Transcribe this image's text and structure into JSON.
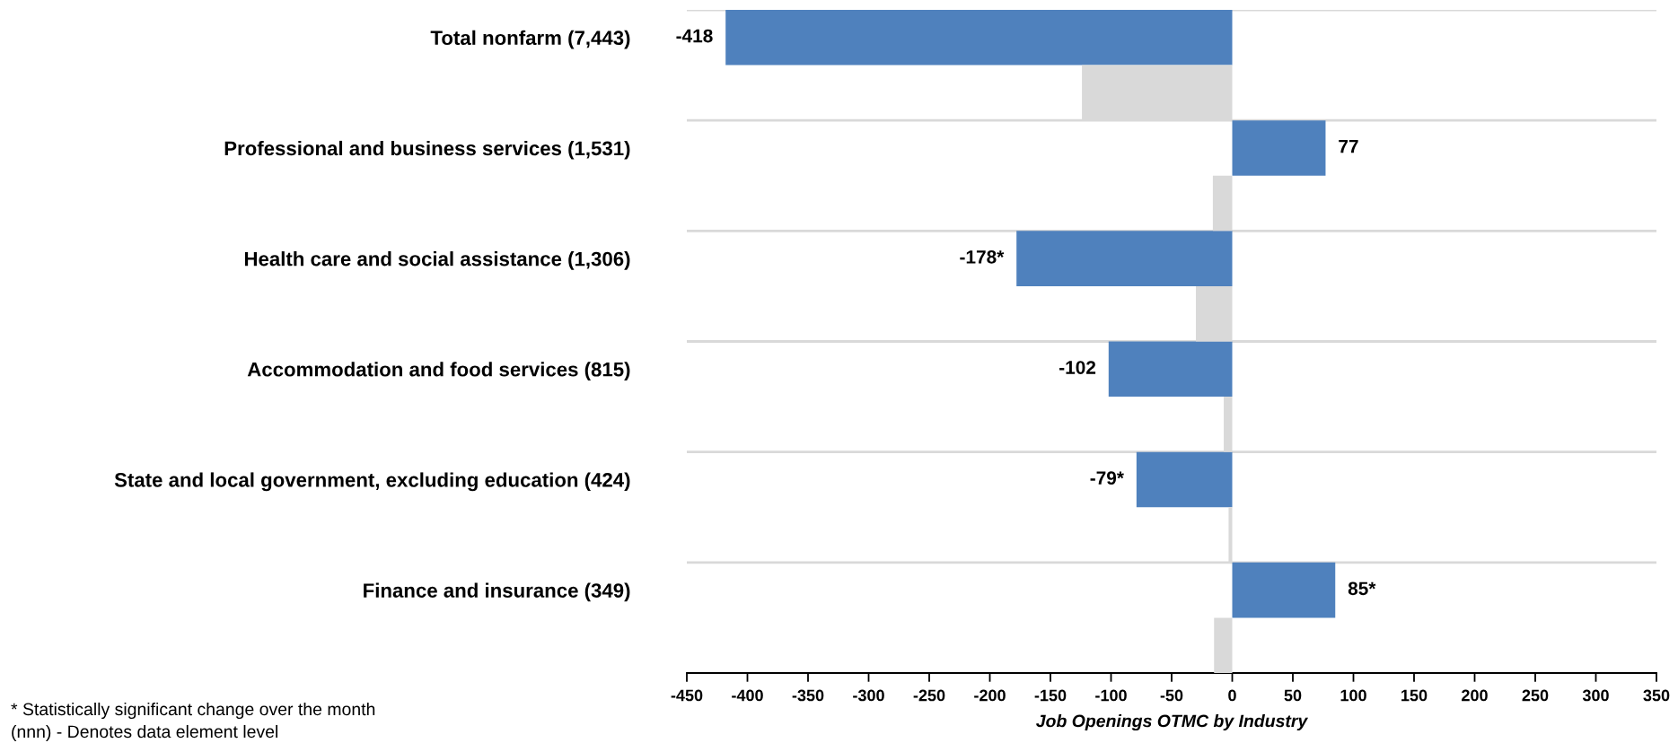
{
  "chart_data": {
    "type": "bar",
    "orientation": "horizontal",
    "categories": [
      "Total nonfarm (7,443)",
      "Professional and business services (1,531)",
      "Health care and social assistance (1,306)",
      "Accommodation and food services (815)",
      "State and local government, excluding education (424)",
      "Finance and insurance (349)"
    ],
    "series": [
      {
        "color": "#4f81bd",
        "values": [
          -418,
          77,
          -178,
          -102,
          -79,
          85
        ],
        "value_labels": [
          "-418",
          "77",
          "-178*",
          "-102",
          "-79*",
          "85*"
        ]
      },
      {
        "color": "#d9d9d9",
        "values": [
          -124,
          -16,
          -30,
          -7,
          -3,
          -15
        ]
      }
    ],
    "xlim": [
      -450,
      350
    ],
    "xticks": [
      -450,
      -400,
      -350,
      -300,
      -250,
      -200,
      -150,
      -100,
      -50,
      0,
      50,
      100,
      150,
      200,
      250,
      300,
      350
    ],
    "xlabel": "Job Openings OTMC by Industry",
    "grid": "y",
    "annotations": [
      "* Statistically significant change over the month",
      "(nnn) - Denotes data element level"
    ]
  }
}
